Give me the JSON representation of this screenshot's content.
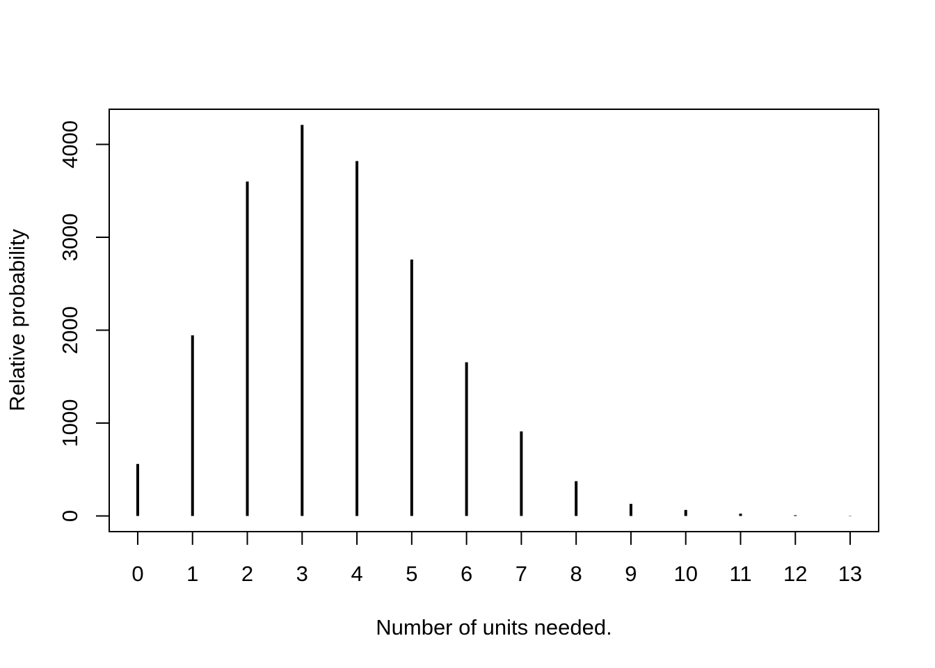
{
  "chart_data": {
    "type": "bar",
    "style": "vertical-lines",
    "title": "",
    "xlabel": "Number of units needed.",
    "ylabel": "Relative probability",
    "x": [
      0,
      1,
      2,
      3,
      4,
      5,
      6,
      7,
      8,
      9,
      10,
      11,
      12,
      13
    ],
    "values": [
      560,
      1945,
      3600,
      4210,
      3820,
      2760,
      1655,
      910,
      375,
      130,
      65,
      25,
      8,
      3
    ],
    "x_ticks": [
      "0",
      "1",
      "2",
      "3",
      "4",
      "5",
      "6",
      "7",
      "8",
      "9",
      "10",
      "11",
      "12",
      "13"
    ],
    "y_ticks": [
      0,
      1000,
      2000,
      3000,
      4000
    ],
    "xlim": [
      -0.52,
      13.52
    ],
    "ylim": [
      -168.4,
      4378.4
    ],
    "grid": false,
    "legend": "none",
    "colors": {
      "line": "#000000",
      "frame": "#000000",
      "background": "#ffffff"
    }
  }
}
